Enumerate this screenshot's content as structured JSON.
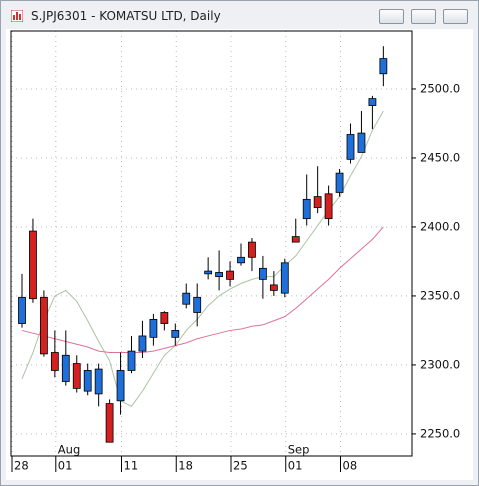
{
  "chart_data": {
    "type": "candlestick",
    "title": "S.JPJ6301 - KOMATSU LTD, Daily",
    "categories": [
      "28",
      null,
      null,
      null,
      "01",
      null,
      null,
      null,
      null,
      null,
      "11",
      null,
      null,
      null,
      null,
      "18",
      null,
      null,
      null,
      null,
      "25",
      null,
      null,
      null,
      null,
      "01",
      null,
      null,
      null,
      null,
      "08",
      null,
      null,
      null
    ],
    "month_labels": [
      null,
      null,
      null,
      null,
      "Aug",
      null,
      null,
      null,
      null,
      null,
      null,
      null,
      null,
      null,
      null,
      null,
      null,
      null,
      null,
      null,
      null,
      null,
      null,
      null,
      null,
      "Sep",
      null,
      null,
      null,
      null,
      null,
      null,
      null,
      null
    ],
    "open": [
      2330,
      2397,
      2349,
      2309,
      2288,
      2301,
      2281,
      2279,
      2272,
      2274,
      2296,
      2310,
      2320,
      2338,
      2320,
      2344,
      2338,
      2366,
      2364,
      2368,
      2374,
      2389,
      2362,
      2358,
      2352,
      2393,
      2406,
      2422,
      2424,
      2425,
      2449,
      2454,
      2488,
      2511
    ],
    "high": [
      2366,
      2406,
      2354,
      2325,
      2325,
      2307,
      2301,
      2301,
      2275,
      2309,
      2321,
      2332,
      2337,
      2339,
      2330,
      2359,
      2359,
      2378,
      2383,
      2375,
      2388,
      2392,
      2379,
      2368,
      2377,
      2406,
      2438,
      2444,
      2430,
      2442,
      2475,
      2484,
      2495,
      2531
    ],
    "low": [
      2327,
      2345,
      2306,
      2291,
      2285,
      2280,
      2278,
      2270,
      2244,
      2264,
      2294,
      2305,
      2314,
      2325,
      2314,
      2341,
      2328,
      2362,
      2354,
      2357,
      2372,
      2368,
      2348,
      2350,
      2349,
      2389,
      2401,
      2410,
      2401,
      2422,
      2446,
      2454,
      2471,
      2502
    ],
    "close": [
      2349,
      2348,
      2308,
      2296,
      2307,
      2283,
      2296,
      2297,
      2244,
      2296,
      2310,
      2321,
      2333,
      2330,
      2325,
      2352,
      2349,
      2368,
      2367,
      2362,
      2378,
      2378,
      2370,
      2354,
      2374,
      2389,
      2420,
      2414,
      2406,
      2439,
      2467,
      2468,
      2493,
      2522
    ],
    "up_color": "#1e6fd9",
    "down_color": "#d42020",
    "lines": [
      {
        "color": "#a9c4a0",
        "values": [
          2290,
          2309,
          2332,
          2350,
          2354,
          2346,
          2332,
          2317,
          2303,
          2274,
          2270,
          2281,
          2294,
          2307,
          2314,
          2325,
          2333,
          2343,
          2350,
          2355,
          2359,
          2362,
          2364,
          2364,
          2372,
          2379,
          2390,
          2401,
          2412,
          2422,
          2437,
          2451,
          2470,
          2484
        ]
      },
      {
        "color": "#e0709a",
        "values": [
          2325,
          2323,
          2321,
          2319,
          2317,
          2315,
          2313,
          2310,
          2309,
          2309,
          2309,
          2309,
          2310,
          2312,
          2314,
          2316,
          2319,
          2321,
          2323,
          2325,
          2326,
          2328,
          2329,
          2332,
          2335,
          2341,
          2348,
          2355,
          2362,
          2370,
          2377,
          2384,
          2391,
          2400
        ]
      }
    ],
    "ylim": [
      2234,
      2542
    ],
    "yticks": [
      {
        "value": 2250,
        "label": "2250.0"
      },
      {
        "value": 2300,
        "label": "2300.0"
      },
      {
        "value": 2350,
        "label": "2350.0"
      },
      {
        "value": 2400,
        "label": "2400.0"
      },
      {
        "value": 2450,
        "label": "2450.0"
      },
      {
        "value": 2500,
        "label": "2500.0"
      }
    ],
    "grid": true
  }
}
